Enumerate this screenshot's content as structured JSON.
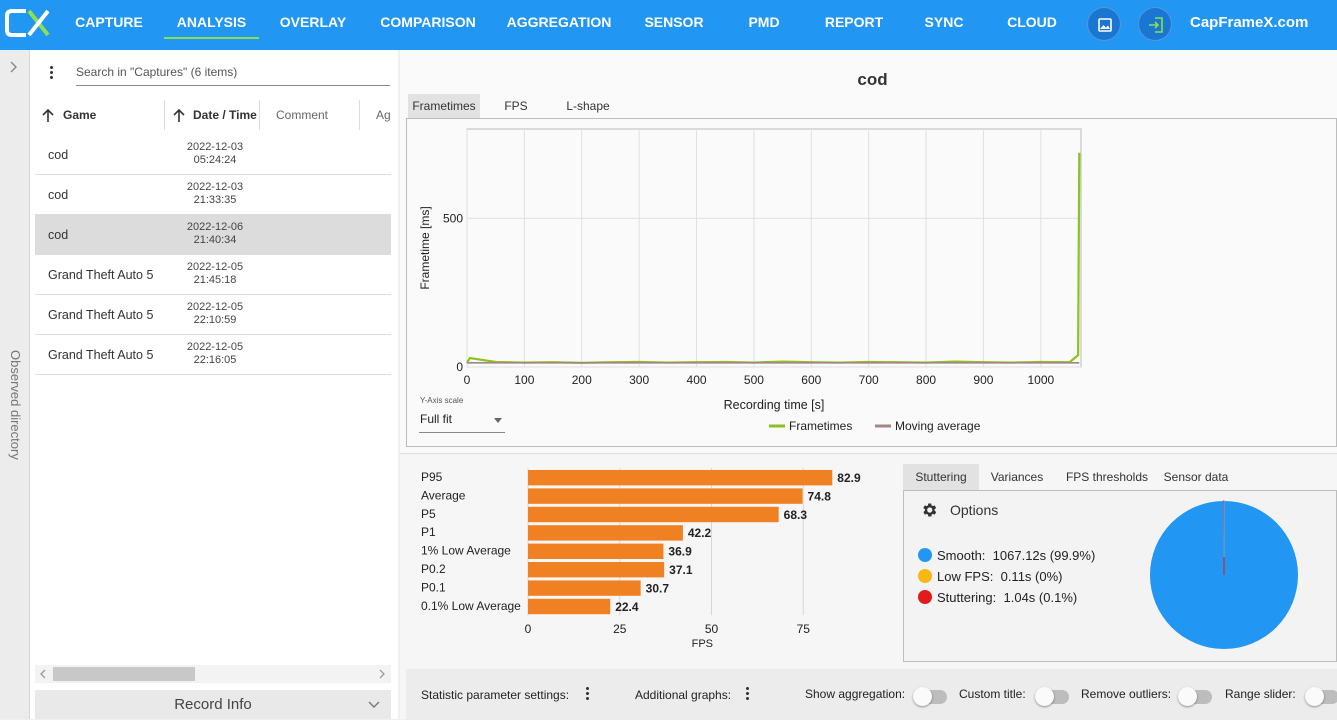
{
  "topbar": {
    "nav": [
      {
        "label": "CAPTURE",
        "active": false
      },
      {
        "label": "ANALYSIS",
        "active": true
      },
      {
        "label": "OVERLAY",
        "active": false
      },
      {
        "label": "COMPARISON",
        "active": false
      },
      {
        "label": "AGGREGATION",
        "active": false
      },
      {
        "label": "SENSOR",
        "active": false
      },
      {
        "label": "PMD",
        "active": false
      },
      {
        "label": "REPORT",
        "active": false
      },
      {
        "label": "SYNC",
        "active": false
      },
      {
        "label": "CLOUD",
        "active": false
      }
    ],
    "site_label": "CapFrameX.com",
    "accent": "#2196f3",
    "active_underline": "#8be04e"
  },
  "sidebar": {
    "observed_label": "Observed directory"
  },
  "captures": {
    "search_placeholder": "Search in \"Captures\" (6 items)",
    "columns": {
      "game": "Game",
      "datetime": "Date / Time",
      "comment": "Comment",
      "ag": "Ag"
    },
    "rows": [
      {
        "game": "cod",
        "date": "2022-12-03",
        "time": "05:24:24",
        "selected": false
      },
      {
        "game": "cod",
        "date": "2022-12-03",
        "time": "21:33:35",
        "selected": false
      },
      {
        "game": "cod",
        "date": "2022-12-06",
        "time": "21:40:34",
        "selected": true
      },
      {
        "game": "Grand Theft Auto 5",
        "date": "2022-12-05",
        "time": "21:45:18",
        "selected": false
      },
      {
        "game": "Grand Theft Auto 5",
        "date": "2022-12-05",
        "time": "22:10:59",
        "selected": false
      },
      {
        "game": "Grand Theft Auto 5",
        "date": "2022-12-05",
        "time": "22:16:05",
        "selected": false
      }
    ],
    "record_info_label": "Record Info"
  },
  "chart_header": {
    "title": "cod",
    "tabs": [
      "Frametimes",
      "FPS",
      "L-shape"
    ]
  },
  "yaxis_control": {
    "caption": "Y-Axis scale",
    "value": "Full fit"
  },
  "chart_data": [
    {
      "type": "line",
      "xlabel": "Recording time [s]",
      "ylabel": "Frametime [ms]",
      "xlim": [
        0,
        1070
      ],
      "ylim": [
        0,
        800
      ],
      "xticks": [
        0,
        100,
        200,
        300,
        400,
        500,
        600,
        700,
        800,
        900,
        1000
      ],
      "yticks": [
        0,
        500
      ],
      "grid": true,
      "legend_position": "bottom",
      "series": [
        {
          "name": "Frametimes",
          "color": "#8dc21f",
          "x": [
            0,
            5,
            50,
            100,
            150,
            200,
            250,
            300,
            350,
            400,
            450,
            500,
            550,
            600,
            650,
            700,
            750,
            800,
            850,
            900,
            950,
            1000,
            1050,
            1065,
            1067
          ],
          "y": [
            14,
            30,
            17,
            15,
            16,
            14,
            16,
            17,
            15,
            16,
            17,
            15,
            18,
            16,
            15,
            17,
            16,
            15,
            18,
            16,
            15,
            17,
            16,
            40,
            720
          ]
        },
        {
          "name": "Moving average",
          "color": "#a1887f",
          "x": [
            0,
            1067
          ],
          "y": [
            14,
            14
          ]
        }
      ]
    },
    {
      "type": "bar",
      "orientation": "horizontal",
      "xlabel": "FPS",
      "xlim": [
        0,
        91
      ],
      "xticks": [
        0,
        25,
        50,
        75
      ],
      "color": "#f08122",
      "categories": [
        "P95",
        "Average",
        "P5",
        "P1",
        "1% Low Average",
        "P0.2",
        "P0.1",
        "0.1% Low Average"
      ],
      "values": [
        82.9,
        74.8,
        68.3,
        42.2,
        36.9,
        37.1,
        30.7,
        22.4
      ]
    },
    {
      "type": "pie",
      "categories": [
        "Smooth",
        "Low FPS",
        "Stuttering"
      ],
      "values": [
        99.9,
        0,
        0.1
      ],
      "colors": [
        "#2196f3",
        "#f9b714",
        "#e31b1b"
      ]
    }
  ],
  "stats_tabs": [
    "Stuttering",
    "Variances",
    "FPS thresholds",
    "Sensor data"
  ],
  "stuttering": {
    "options_label": "Options",
    "legend": [
      {
        "label": "Smooth:",
        "value": "1067.12s (99.9%)",
        "color": "#2196f3"
      },
      {
        "label": "Low FPS:",
        "value": "0.11s (0%)",
        "color": "#f9b714"
      },
      {
        "label": "Stuttering:",
        "value": "1.04s (0.1%)",
        "color": "#e31b1b"
      }
    ]
  },
  "footer": {
    "stat_params": "Statistic parameter settings:",
    "additional_graphs": "Additional graphs:",
    "show_aggregation": "Show aggregation:",
    "custom_title": "Custom title:",
    "remove_outliers": "Remove outliers:",
    "range_slider": "Range slider:"
  }
}
